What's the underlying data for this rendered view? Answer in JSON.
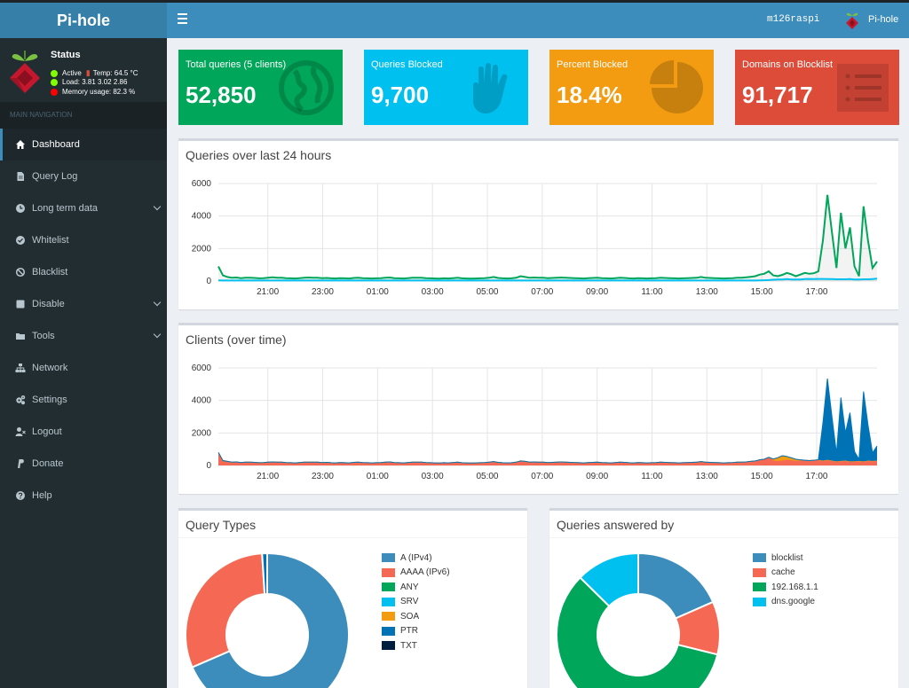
{
  "header": {
    "brand": "Pi-hole",
    "hostname": "m126raspi",
    "nav_brand": "Pi-hole"
  },
  "sidebar": {
    "status": {
      "title": "Status",
      "active": "Active",
      "temp": "Temp: 64.5 °C",
      "load": "Load:  3.81  3.02  2.86",
      "memory": "Memory usage:  82.3 %"
    },
    "nav_header": "MAIN NAVIGATION",
    "items": [
      {
        "label": "Dashboard",
        "icon": "home-icon",
        "active": true,
        "chevron": false
      },
      {
        "label": "Query Log",
        "icon": "file-icon",
        "active": false,
        "chevron": false
      },
      {
        "label": "Long term data",
        "icon": "clock-icon",
        "active": false,
        "chevron": true
      },
      {
        "label": "Whitelist",
        "icon": "check-circle-icon",
        "active": false,
        "chevron": false
      },
      {
        "label": "Blacklist",
        "icon": "ban-icon",
        "active": false,
        "chevron": false
      },
      {
        "label": "Disable",
        "icon": "square-icon",
        "active": false,
        "chevron": true
      },
      {
        "label": "Tools",
        "icon": "folder-icon",
        "active": false,
        "chevron": true
      },
      {
        "label": "Network",
        "icon": "network-icon",
        "active": false,
        "chevron": false
      },
      {
        "label": "Settings",
        "icon": "gears-icon",
        "active": false,
        "chevron": false
      },
      {
        "label": "Logout",
        "icon": "user-times-icon",
        "active": false,
        "chevron": false
      },
      {
        "label": "Donate",
        "icon": "paypal-icon",
        "active": false,
        "chevron": false
      },
      {
        "label": "Help",
        "icon": "question-circle-icon",
        "active": false,
        "chevron": false
      }
    ]
  },
  "info_boxes": [
    {
      "label": "Total queries (5 clients)",
      "value": "52,850",
      "color": "#00a65a",
      "icon": "globe-icon"
    },
    {
      "label": "Queries Blocked",
      "value": "9,700",
      "color": "#00c0ef",
      "icon": "hand-icon"
    },
    {
      "label": "Percent Blocked",
      "value": "18.4%",
      "color": "#f39c12",
      "icon": "pie-icon"
    },
    {
      "label": "Domains on Blocklist",
      "value": "91,717",
      "color": "#dd4b39",
      "icon": "list-icon"
    }
  ],
  "queries_chart": {
    "title": "Queries over last 24 hours"
  },
  "clients_chart": {
    "title": "Clients (over time)"
  },
  "query_types": {
    "title": "Query Types"
  },
  "forward_destinations": {
    "title": "Queries answered by"
  },
  "chart_data": [
    {
      "type": "area",
      "title": "Queries over last 24 hours",
      "ylim": [
        0,
        6000
      ],
      "yticks": [
        0,
        2000,
        4000,
        6000
      ],
      "xticks": [
        "21:00",
        "23:00",
        "01:00",
        "03:00",
        "05:00",
        "07:00",
        "09:00",
        "11:00",
        "13:00",
        "15:00",
        "17:00"
      ],
      "x_start_hour": 19.2,
      "x_end_hour": 19.2,
      "series": [
        {
          "color": "#00a65a",
          "values": [
            900,
            350,
            250,
            200,
            220,
            180,
            200,
            210,
            190,
            170,
            180,
            200,
            230,
            210,
            200,
            180,
            170,
            160,
            180,
            200,
            220,
            210,
            200,
            180,
            190,
            170,
            160,
            180,
            170,
            160,
            190,
            200,
            180,
            170,
            160,
            170,
            180,
            200,
            220,
            180,
            170,
            160,
            180,
            200,
            210,
            200,
            180,
            170,
            160,
            150,
            170,
            160,
            180,
            200,
            170,
            160,
            150,
            160,
            170,
            180,
            200,
            250,
            190,
            170,
            160,
            170,
            200,
            300,
            250,
            200,
            220,
            210,
            200,
            180,
            190,
            210,
            220,
            200,
            190,
            180,
            170,
            160,
            180,
            190,
            200,
            180,
            170,
            160,
            180,
            200,
            190,
            170,
            160,
            180,
            170,
            160,
            170,
            180,
            200,
            190,
            180,
            170,
            160,
            170,
            180,
            190,
            200,
            250,
            200,
            190,
            180,
            170,
            160,
            170,
            180,
            200,
            210,
            230,
            260,
            300,
            400,
            450,
            600,
            350,
            300,
            380,
            500,
            420,
            300,
            400,
            500,
            450,
            480,
            600,
            2500,
            5300,
            3000,
            800,
            4200,
            2000,
            3300,
            900,
            300,
            4600,
            2500,
            800,
            1200
          ]
        },
        {
          "color": "#00c0ef",
          "values": [
            40,
            30,
            30,
            30,
            30,
            30,
            30,
            30,
            30,
            30,
            30,
            30,
            30,
            30,
            30,
            30,
            30,
            30,
            30,
            30,
            30,
            30,
            30,
            30,
            30,
            30,
            30,
            30,
            30,
            30,
            30,
            30,
            30,
            30,
            30,
            30,
            30,
            30,
            30,
            30,
            30,
            30,
            30,
            30,
            30,
            30,
            30,
            30,
            30,
            30,
            30,
            30,
            30,
            30,
            30,
            30,
            30,
            30,
            30,
            30,
            30,
            30,
            30,
            30,
            30,
            30,
            30,
            30,
            30,
            30,
            30,
            30,
            30,
            30,
            30,
            30,
            30,
            30,
            30,
            30,
            30,
            30,
            30,
            30,
            30,
            30,
            30,
            30,
            30,
            30,
            30,
            30,
            30,
            30,
            30,
            30,
            30,
            30,
            30,
            30,
            30,
            30,
            30,
            30,
            30,
            30,
            30,
            30,
            30,
            30,
            30,
            30,
            30,
            30,
            30,
            30,
            30,
            30,
            30,
            30,
            40,
            50,
            60,
            80,
            90,
            100,
            120,
            100,
            90,
            100,
            120,
            130,
            120,
            130,
            130,
            120,
            120,
            110,
            110,
            110,
            120,
            100,
            100,
            110,
            110,
            120,
            150
          ]
        }
      ]
    },
    {
      "type": "area",
      "title": "Clients (over time)",
      "ylim": [
        0,
        6000
      ],
      "yticks": [
        0,
        2000,
        4000,
        6000
      ],
      "xticks": [
        "21:00",
        "23:00",
        "01:00",
        "03:00",
        "05:00",
        "07:00",
        "09:00",
        "11:00",
        "13:00",
        "15:00",
        "17:00"
      ],
      "series": [
        {
          "color": "#f56954",
          "values": [
            800,
            300,
            250,
            200,
            220,
            180,
            200,
            200,
            190,
            170,
            180,
            200,
            220,
            210,
            200,
            180,
            170,
            160,
            180,
            200,
            210,
            200,
            200,
            180,
            190,
            170,
            160,
            180,
            170,
            160,
            190,
            200,
            180,
            170,
            160,
            170,
            180,
            200,
            220,
            180,
            170,
            160,
            180,
            200,
            210,
            200,
            180,
            170,
            160,
            150,
            170,
            160,
            180,
            200,
            170,
            160,
            150,
            160,
            170,
            180,
            200,
            240,
            190,
            170,
            160,
            170,
            200,
            280,
            250,
            200,
            220,
            210,
            200,
            180,
            190,
            210,
            220,
            200,
            190,
            180,
            170,
            160,
            180,
            190,
            200,
            180,
            170,
            160,
            180,
            200,
            190,
            170,
            160,
            180,
            170,
            160,
            170,
            180,
            200,
            190,
            180,
            170,
            160,
            170,
            180,
            190,
            200,
            240,
            200,
            190,
            180,
            170,
            160,
            170,
            180,
            200,
            210,
            220,
            250,
            280,
            350,
            380,
            500,
            300,
            280,
            300,
            350,
            320,
            280,
            300,
            320,
            300,
            320,
            350,
            300,
            350,
            300,
            250,
            280,
            300,
            250,
            260,
            280,
            250,
            300,
            280,
            300
          ]
        },
        {
          "color": "#f39c12",
          "values": [
            0,
            0,
            0,
            0,
            0,
            0,
            0,
            0,
            0,
            0,
            0,
            0,
            0,
            0,
            0,
            0,
            0,
            0,
            0,
            0,
            0,
            0,
            0,
            0,
            0,
            0,
            0,
            0,
            0,
            0,
            0,
            0,
            0,
            0,
            0,
            0,
            0,
            0,
            0,
            0,
            0,
            0,
            0,
            0,
            0,
            0,
            0,
            0,
            0,
            0,
            0,
            0,
            0,
            0,
            0,
            0,
            0,
            0,
            0,
            0,
            0,
            0,
            0,
            0,
            0,
            0,
            0,
            0,
            0,
            0,
            0,
            0,
            0,
            0,
            0,
            0,
            0,
            0,
            0,
            0,
            0,
            0,
            0,
            0,
            0,
            0,
            0,
            0,
            0,
            0,
            0,
            0,
            0,
            0,
            0,
            0,
            0,
            0,
            0,
            0,
            0,
            0,
            0,
            0,
            0,
            0,
            0,
            0,
            0,
            0,
            0,
            0,
            0,
            0,
            0,
            0,
            0,
            0,
            0,
            0,
            0,
            0,
            0,
            100,
            200,
            300,
            200,
            150,
            100,
            50,
            0,
            0,
            0,
            0,
            0,
            0,
            0,
            0,
            0,
            0,
            0,
            0,
            0,
            0,
            0,
            0,
            0
          ]
        },
        {
          "color": "#0073b7",
          "values": [
            0,
            0,
            0,
            0,
            0,
            0,
            0,
            0,
            0,
            0,
            0,
            0,
            0,
            0,
            0,
            0,
            0,
            0,
            0,
            0,
            0,
            0,
            0,
            0,
            0,
            0,
            0,
            0,
            0,
            0,
            0,
            0,
            0,
            0,
            0,
            0,
            0,
            0,
            0,
            0,
            0,
            0,
            0,
            0,
            0,
            0,
            0,
            0,
            0,
            0,
            0,
            0,
            0,
            0,
            0,
            0,
            0,
            0,
            0,
            0,
            0,
            0,
            0,
            0,
            0,
            0,
            0,
            0,
            0,
            0,
            0,
            0,
            0,
            0,
            0,
            0,
            0,
            0,
            0,
            0,
            0,
            0,
            0,
            0,
            0,
            0,
            0,
            0,
            0,
            0,
            0,
            0,
            0,
            0,
            0,
            0,
            0,
            0,
            0,
            0,
            0,
            0,
            0,
            0,
            0,
            0,
            0,
            0,
            0,
            0,
            0,
            0,
            0,
            0,
            0,
            0,
            0,
            0,
            0,
            0,
            0,
            0,
            0,
            0,
            0,
            0,
            0,
            0,
            0,
            0,
            0,
            0,
            0,
            0,
            2300,
            5000,
            2700,
            500,
            3900,
            1700,
            3000,
            600,
            100,
            4300,
            2200,
            500,
            900
          ]
        }
      ]
    },
    {
      "type": "pie",
      "title": "Query Types",
      "categories": [
        "A (IPv4)",
        "AAAA (IPv6)",
        "ANY",
        "SRV",
        "SOA",
        "PTR",
        "TXT"
      ],
      "values": [
        68.5,
        30.5,
        0,
        0,
        0,
        1.0,
        0
      ],
      "colors": [
        "#3c8dbc",
        "#f56954",
        "#00a65a",
        "#00c0ef",
        "#f39c12",
        "#0073b7",
        "#001f3f"
      ]
    },
    {
      "type": "pie",
      "title": "Queries answered by",
      "categories": [
        "blocklist",
        "cache",
        "192.168.1.1",
        "dns.google"
      ],
      "values": [
        18.4,
        10.5,
        58.5,
        12.6
      ],
      "colors": [
        "#3c8dbc",
        "#f56954",
        "#00a65a",
        "#00c0ef"
      ]
    }
  ]
}
